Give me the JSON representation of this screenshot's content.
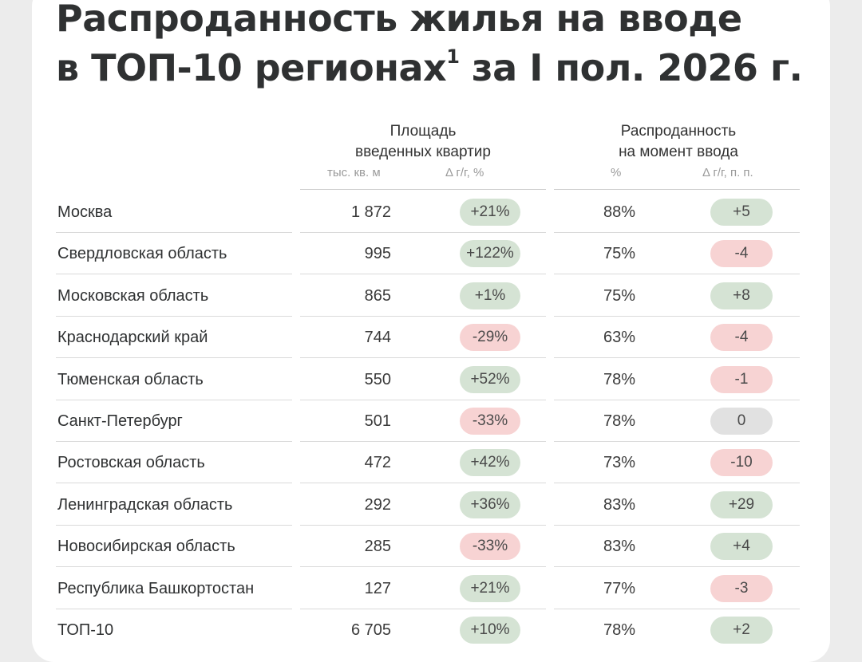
{
  "title": {
    "line1": "Распроданность жилья на вводе",
    "line2_pre": "в ТОП-10 регионах",
    "line2_sup": "1",
    "line2_post": " за I пол. 2026 г."
  },
  "columns": {
    "area_group_line1": "Площадь",
    "area_group_line2": "введенных квартир",
    "area_unit": "тыс. кв. м",
    "area_delta": "Δ г/г, %",
    "sold_group_line1": "Распроданность",
    "sold_group_line2": "на момент ввода",
    "sold_unit": "%",
    "sold_delta": "Δ г/г, п. п."
  },
  "colors": {
    "positive": "#d5e3d4",
    "negative": "#f7d3d3",
    "zero": "#e1e1e1"
  },
  "rows": [
    {
      "region": "Москва",
      "area": "1 872",
      "area_delta": "+21%",
      "area_delta_sign": "pos",
      "sold": "88%",
      "sold_delta": "+5",
      "sold_delta_sign": "pos"
    },
    {
      "region": "Свердловская область",
      "area": "995",
      "area_delta": "+122%",
      "area_delta_sign": "pos",
      "sold": "75%",
      "sold_delta": "-4",
      "sold_delta_sign": "neg"
    },
    {
      "region": "Московская область",
      "area": "865",
      "area_delta": "+1%",
      "area_delta_sign": "pos",
      "sold": "75%",
      "sold_delta": "+8",
      "sold_delta_sign": "pos"
    },
    {
      "region": "Краснодарский край",
      "area": "744",
      "area_delta": "-29%",
      "area_delta_sign": "neg",
      "sold": "63%",
      "sold_delta": "-4",
      "sold_delta_sign": "neg"
    },
    {
      "region": "Тюменская область",
      "area": "550",
      "area_delta": "+52%",
      "area_delta_sign": "pos",
      "sold": "78%",
      "sold_delta": "-1",
      "sold_delta_sign": "neg"
    },
    {
      "region": "Санкт-Петербург",
      "area": "501",
      "area_delta": "-33%",
      "area_delta_sign": "neg",
      "sold": "78%",
      "sold_delta": "0",
      "sold_delta_sign": "zero"
    },
    {
      "region": "Ростовская область",
      "area": "472",
      "area_delta": "+42%",
      "area_delta_sign": "pos",
      "sold": "73%",
      "sold_delta": "-10",
      "sold_delta_sign": "neg"
    },
    {
      "region": "Ленинградская область",
      "area": "292",
      "area_delta": "+36%",
      "area_delta_sign": "pos",
      "sold": "83%",
      "sold_delta": "+29",
      "sold_delta_sign": "pos"
    },
    {
      "region": "Новосибирская область",
      "area": "285",
      "area_delta": "-33%",
      "area_delta_sign": "neg",
      "sold": "83%",
      "sold_delta": "+4",
      "sold_delta_sign": "pos"
    },
    {
      "region": "Республика Башкортостан",
      "area": "127",
      "area_delta": "+21%",
      "area_delta_sign": "pos",
      "sold": "77%",
      "sold_delta": "-3",
      "sold_delta_sign": "neg"
    },
    {
      "region": "ТОП-10",
      "area": "6 705",
      "area_delta": "+10%",
      "area_delta_sign": "pos",
      "sold": "78%",
      "sold_delta": "+2",
      "sold_delta_sign": "pos"
    }
  ]
}
